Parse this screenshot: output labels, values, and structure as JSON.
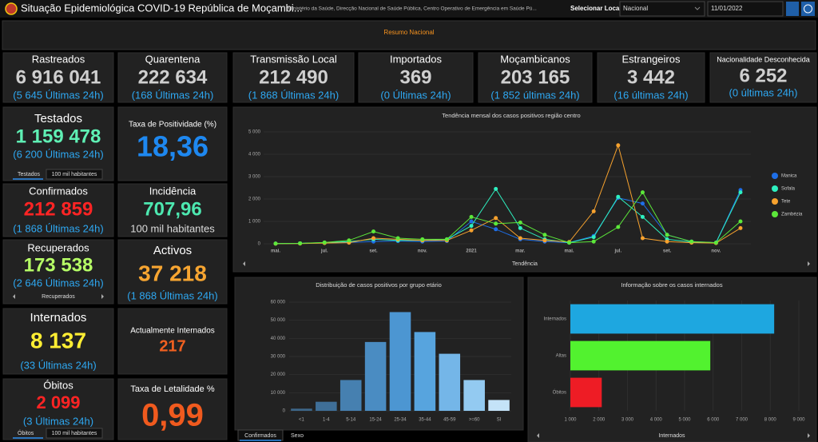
{
  "header": {
    "title": "Situação Epidemiológica COVID-19 República de Moçambi...",
    "subtitle": "Ministério da Saúde, Direcção Nacional de Saúde Pública, Centro Operativo de Emergência em Saúde Pú...",
    "select_label": "Selecionar Local",
    "select_value": "Nacional",
    "date": "11/01/2022"
  },
  "banner": "Resumo Nacional",
  "cards": [
    {
      "title": "Rastreados",
      "value": "6 916 041",
      "sub": "(5 645 Últimas 24h)",
      "color": "#cfcfcf"
    },
    {
      "title": "Quarentena",
      "value": "222 634",
      "sub": "(168 Últimas 24h)",
      "color": "#cfcfcf"
    },
    {
      "title": "Transmissão Local",
      "value": "212 490",
      "sub": "(1 868 Últimas 24h)",
      "color": "#cfcfcf"
    },
    {
      "title": "Importados",
      "value": "369",
      "sub": "(0 Últimas 24h)",
      "color": "#cfcfcf"
    },
    {
      "title": "Moçambicanos",
      "value": "203 165",
      "sub": "(1 852 últimas 24h)",
      "color": "#cfcfcf"
    },
    {
      "title": "Estrangeiros",
      "value": "3 442",
      "sub": "(16 últimas 24h)",
      "color": "#cfcfcf"
    },
    {
      "title": "Nacionalidade Desconhecida",
      "value": "6 252",
      "sub": "(0 últimas 24h)",
      "color": "#cfcfcf"
    },
    {
      "title": "Testados",
      "value": "1 159 478",
      "sub": "(6 200 Últimas 24h)",
      "color": "#5ff0b4",
      "tabs": [
        "Testados",
        "100 mil habitantes"
      ]
    },
    {
      "title": "Taxa de Positividade (%)",
      "value": "18,36",
      "color": "#1e88f0"
    },
    {
      "title": "Confirmados",
      "value": "212 859",
      "sub": "(1 868 Últimas 24h)",
      "color": "#ff2424"
    },
    {
      "title": "Incidência",
      "value": "707,96",
      "sub": "100 mil habitantes",
      "color": "#4de8b0",
      "sub_color": "#dddddd"
    },
    {
      "title": "Recuperados",
      "value": "173 538",
      "sub": "(2 646 Últimas 24h)",
      "color": "#b6ff66",
      "tabs": [
        "Recuperados"
      ]
    },
    {
      "title": "Activos",
      "value": "37 218",
      "sub": "(1 868 Últimas 24h)",
      "color": "#f7a531"
    },
    {
      "title": "Internados",
      "value": "8 137",
      "sub": "(33 Últimas 24h)",
      "color": "#ffee33"
    },
    {
      "title": "Actualmente Internados",
      "value": "217",
      "color": "#f06020"
    },
    {
      "title": "Óbitos",
      "value": "2 099",
      "sub": "(3 Últimas 24h)",
      "color": "#ff2424",
      "tabs": [
        "Óbitos",
        "100 mil habitantes"
      ]
    },
    {
      "title": "Taxa de Letalidade %",
      "value": "0,99",
      "color": "#f05a1e"
    }
  ],
  "chart_data": [
    {
      "type": "line",
      "title": "Tendência mensal dos casos positivos região centro",
      "footer": "Tendência",
      "legend": "right",
      "categories": [
        "mai.",
        null,
        "jul.",
        null,
        "set.",
        null,
        "nov.",
        null,
        "2021",
        null,
        "mar.",
        null,
        "mai.",
        null,
        "jul.",
        null,
        "set.",
        null,
        "nov.",
        null
      ],
      "series": [
        {
          "name": "Manica",
          "color": "#1e6fe8",
          "values": [
            10,
            20,
            40,
            60,
            100,
            120,
            100,
            120,
            1000,
            650,
            200,
            100,
            50,
            350,
            2050,
            1800,
            400,
            100,
            50,
            2400
          ]
        },
        {
          "name": "Sofala",
          "color": "#2ef0c0",
          "values": [
            10,
            20,
            50,
            100,
            200,
            150,
            150,
            200,
            800,
            2450,
            700,
            200,
            50,
            300,
            2100,
            1200,
            200,
            80,
            50,
            2300
          ]
        },
        {
          "name": "Tete",
          "color": "#f7a22e",
          "values": [
            5,
            10,
            30,
            50,
            250,
            200,
            150,
            150,
            600,
            1150,
            250,
            150,
            80,
            1450,
            4400,
            250,
            100,
            50,
            30,
            700
          ]
        },
        {
          "name": "Zambézia",
          "color": "#5ce83a",
          "values": [
            10,
            20,
            60,
            150,
            550,
            250,
            200,
            200,
            1200,
            900,
            950,
            400,
            50,
            100,
            750,
            2300,
            400,
            100,
            50,
            1000
          ]
        }
      ],
      "ylim": [
        0,
        5000
      ],
      "yticks": [
        0,
        {
          "value": 1000,
          "label": "1 000"
        },
        {
          "value": 2000,
          "label": "2 000"
        },
        {
          "value": 3000,
          "label": "3 000"
        },
        {
          "value": 4000,
          "label": "4 000"
        },
        {
          "value": 5000,
          "label": "5 000"
        }
      ],
      "grid": true
    },
    {
      "type": "bar",
      "title": "Distribuição de casos positivos por grupo etário",
      "tabs": [
        "Confirmados",
        "Sexo"
      ],
      "categories": [
        "<1",
        "1-4",
        "5-14",
        "15-24",
        "25-34",
        "35-44",
        "45-59",
        ">=60",
        "SI"
      ],
      "values": [
        1200,
        5000,
        17000,
        38000,
        54500,
        43500,
        31500,
        17000,
        6000
      ],
      "colors": [
        "#3d6688",
        "#3f6f98",
        "#4680b0",
        "#4a8cc2",
        "#4c96d2",
        "#57a4de",
        "#74b6e8",
        "#93caf1",
        "#c4e3f8"
      ],
      "ylim": [
        0,
        60000
      ],
      "yticks": [
        0,
        {
          "value": 10000,
          "label": "10 000"
        },
        {
          "value": 20000,
          "label": "20 000"
        },
        {
          "value": 30000,
          "label": "30 000"
        },
        {
          "value": 40000,
          "label": "40 000"
        },
        {
          "value": 50000,
          "label": "50 000"
        },
        {
          "value": 60000,
          "label": "60 000"
        }
      ],
      "grid": true
    },
    {
      "type": "hbar",
      "title": "Informação sobre os casos internados",
      "footer": "Internados",
      "categories": [
        "Internados",
        "Altas",
        "Óbitos"
      ],
      "values": [
        8137,
        5900,
        2099
      ],
      "colors": [
        "#1ea7e0",
        "#52f22f",
        "#ee1c25"
      ],
      "xlim": [
        1000,
        9000
      ],
      "xticks": [
        {
          "value": 1000,
          "label": "1 000"
        },
        {
          "value": 2000,
          "label": "2 000"
        },
        {
          "value": 3000,
          "label": "3 000"
        },
        {
          "value": 4000,
          "label": "4 000"
        },
        {
          "value": 5000,
          "label": "5 000"
        },
        {
          "value": 6000,
          "label": "6 000"
        },
        {
          "value": 7000,
          "label": "7 000"
        },
        {
          "value": 8000,
          "label": "8 000"
        },
        {
          "value": 9000,
          "label": "9 000"
        }
      ],
      "grid": true
    }
  ]
}
